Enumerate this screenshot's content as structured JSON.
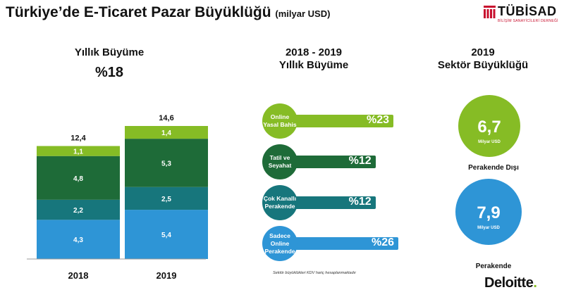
{
  "header": {
    "title": "Türkiye’de E-Ticaret Pazar Büyüklüğü",
    "unit": "(milyar USD)"
  },
  "logos": {
    "tubisad": "TÜBİSAD",
    "tubisad_sub": "BİLİŞİM SANAYİCİLERİ DERNEĞİ",
    "deloitte": "Deloitte",
    "deloitte_dot": "."
  },
  "left": {
    "header": "Yıllık Büyüme",
    "growth": "%18"
  },
  "middle": {
    "header_line1": "2018 - 2019",
    "header_line2": "Yıllık Büyüme",
    "note": "Sektör büyüklükleri KDV hariç hesaplanmaktadır"
  },
  "right": {
    "header_line1": "2019",
    "header_line2": "Sektör Büyüklüğü"
  },
  "colors": {
    "light_blue": "#2e95d6",
    "teal": "#17767c",
    "dark_green": "#1e6b38",
    "light_green": "#86bc25",
    "text": "#111111"
  },
  "chart_data": [
    {
      "type": "bar",
      "stacked": true,
      "categories": [
        "2018",
        "2019"
      ],
      "totals": [
        "12,4",
        "14,6"
      ],
      "series": [
        {
          "color": "#2e95d6",
          "values": [
            4.3,
            5.4
          ],
          "labels": [
            "4,3",
            "5,4"
          ]
        },
        {
          "color": "#17767c",
          "values": [
            2.2,
            2.5
          ],
          "labels": [
            "2,2",
            "2,5"
          ]
        },
        {
          "color": "#1e6b38",
          "values": [
            4.8,
            5.3
          ],
          "labels": [
            "4,8",
            "5,3"
          ]
        },
        {
          "color": "#86bc25",
          "values": [
            1.1,
            1.4
          ],
          "labels": [
            "1,1",
            "1,4"
          ]
        }
      ],
      "ylim": [
        0,
        14.6
      ],
      "grid": false
    },
    {
      "type": "bar",
      "orientation": "horizontal",
      "categories": [
        "Online Yasal Bahis",
        "Tatil ve Seyahat",
        "Çok Kanallı Perakende",
        "Sadece Online Perakende"
      ],
      "values": [
        23,
        12,
        12,
        26
      ],
      "labels": [
        "%23",
        "%12",
        "%12",
        "%26"
      ],
      "colors": [
        "#86bc25",
        "#1e6b38",
        "#17767c",
        "#2e95d6"
      ]
    },
    {
      "type": "bubble",
      "categories": [
        "Perakende Dışı",
        "Perakende"
      ],
      "values": [
        "6,7",
        "7,9"
      ],
      "unit": "Milyar USD",
      "colors": [
        "#86bc25",
        "#2e95d6"
      ]
    }
  ]
}
